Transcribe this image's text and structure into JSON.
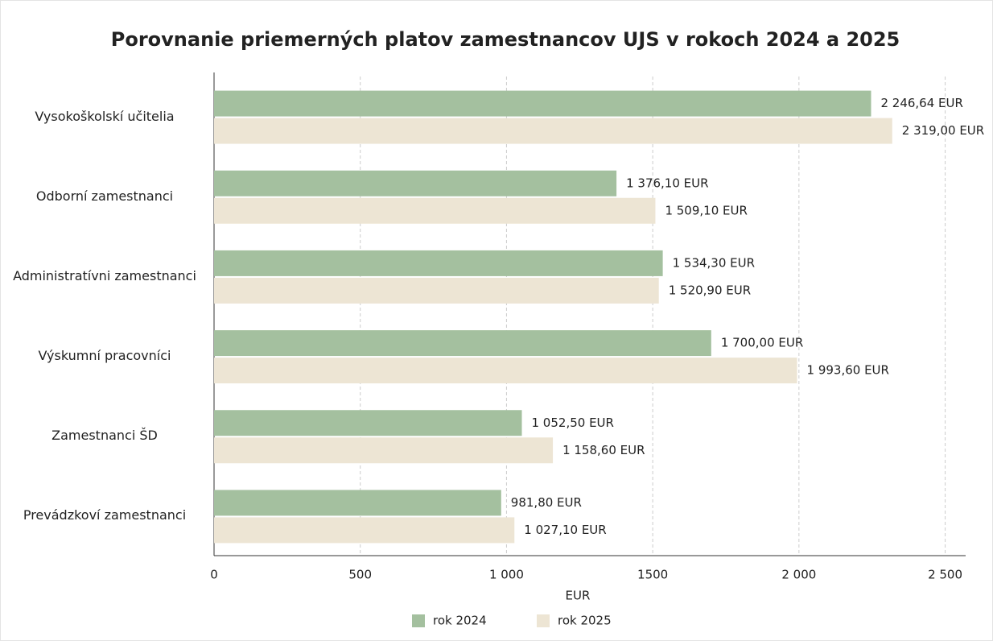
{
  "chart_data": {
    "type": "barh",
    "title": "Porovnanie priemerných platov zamestnancov UJS v rokoch 2024 a 2025",
    "xlabel": "EUR",
    "categories": [
      "Vysokoškolskí učitelia",
      "Odborní zamestnanci",
      "Administratívni zamestnanci",
      "Výskumní pracovníci",
      "Zamestnanci ŠD",
      "Prevádzkoví zamestnanci"
    ],
    "series": [
      {
        "name": "rok 2024",
        "color": "#a4c09f",
        "values": [
          2246.64,
          1376.1,
          1534.3,
          1700,
          1052.5,
          981.8
        ],
        "value_labels": [
          "2 246,64 EUR",
          "1 376,10 EUR",
          "1 534,30 EUR",
          "1 700,00 EUR",
          "1 052,50 EUR",
          "981,80 EUR"
        ]
      },
      {
        "name": "rok 2025",
        "color": "#ede5d4",
        "values": [
          2319,
          1509.1,
          1520.9,
          1993.6,
          1158.6,
          1027.1
        ],
        "value_labels": [
          "2 319,00 EUR",
          "1 509,10 EUR",
          "1 520,90 EUR",
          "1 993,60 EUR",
          "1 158,60 EUR",
          "1 027,10 EUR"
        ]
      }
    ],
    "xlim": [
      0,
      2570
    ],
    "xticks": [
      0,
      500,
      {
        "value": 1000,
        "label": "1 000"
      },
      1500,
      {
        "value": 2000,
        "label": "2 000"
      },
      {
        "value": 2500,
        "label": "2 500"
      }
    ],
    "grid": true,
    "legend": "bottom"
  }
}
